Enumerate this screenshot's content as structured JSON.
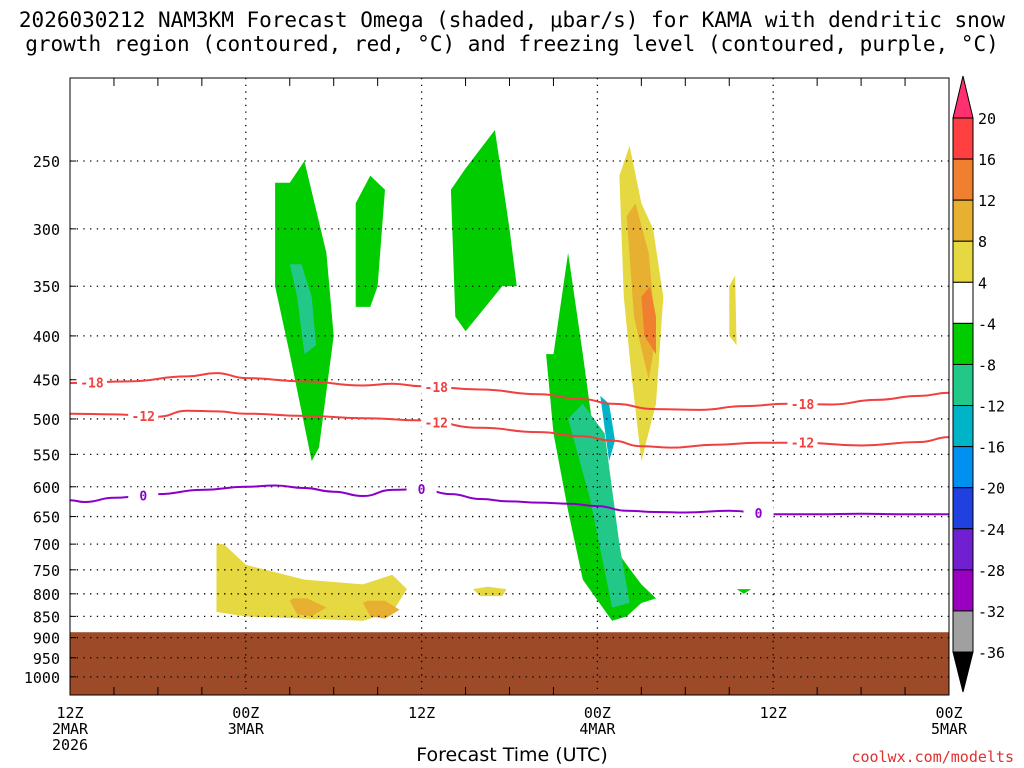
{
  "chart_data": {
    "type": "contour",
    "title_line1": "2026030212 NAM3KM Forecast Omega (shaded, μbar/s) for KAMA with dendritic snow",
    "title_line2": "growth region (contoured, red, °C) and freezing level (contoured, purple, °C)",
    "xlabel": "Forecast Time (UTC)",
    "x_unit": "hours since 2026-03-02 12Z",
    "xlim": [
      0,
      60
    ],
    "ylim_hpa": [
      200,
      1050
    ],
    "y_ticks": [
      250,
      300,
      350,
      400,
      450,
      500,
      550,
      600,
      650,
      700,
      750,
      800,
      850,
      900,
      950,
      1000
    ],
    "x_ticks": [
      {
        "h": 0,
        "lines": [
          "12Z",
          "2MAR",
          "2026"
        ]
      },
      {
        "h": 12,
        "lines": [
          "00Z",
          "3MAR"
        ]
      },
      {
        "h": 24,
        "lines": [
          "12Z"
        ]
      },
      {
        "h": 36,
        "lines": [
          "00Z",
          "4MAR"
        ]
      },
      {
        "h": 48,
        "lines": [
          "12Z"
        ]
      },
      {
        "h": 60,
        "lines": [
          "00Z",
          "5MAR"
        ]
      }
    ],
    "colorbar": {
      "levels": [
        20,
        16,
        12,
        8,
        4,
        -4,
        -8,
        -12,
        -16,
        -20,
        -24,
        -28,
        -32,
        -36
      ],
      "colors": [
        "#ff3070",
        "#ff4040",
        "#f08030",
        "#e8b030",
        "#e6d840",
        "#ffffff",
        "#00cc00",
        "#22c888",
        "#00b4c8",
        "#0090f0",
        "#2040e0",
        "#7020d0",
        "#9a00c0",
        "#a0a0a0",
        "#000000"
      ]
    },
    "series": [
      {
        "name": "-18 °C isotherm",
        "color": "#f04040",
        "label": "-18",
        "x": [
          0,
          4,
          8,
          10,
          12,
          16,
          20,
          22,
          24,
          28,
          32,
          35,
          37,
          40,
          43,
          46,
          49,
          52,
          55,
          58,
          60
        ],
        "y": [
          454,
          452,
          446,
          442,
          448,
          452,
          457,
          455,
          458,
          462,
          468,
          474,
          480,
          487,
          488,
          483,
          480,
          481,
          475,
          470,
          466
        ]
      },
      {
        "name": "-12 °C isotherm",
        "color": "#f04040",
        "label": "-12",
        "x": [
          0,
          3,
          6,
          8,
          10,
          12,
          16,
          20,
          24,
          28,
          32,
          35,
          37,
          39,
          41,
          44,
          47,
          50,
          54,
          58,
          60
        ],
        "y": [
          493,
          494,
          497,
          489,
          490,
          493,
          496,
          499,
          502,
          512,
          518,
          524,
          530,
          538,
          540,
          536,
          533,
          533,
          537,
          532,
          525
        ]
      },
      {
        "name": "0 °C freezing level",
        "color": "#8a00c8",
        "label": "0",
        "x": [
          0,
          1,
          3,
          6,
          9,
          12,
          14,
          16,
          18,
          20,
          22,
          24,
          26,
          28,
          30,
          32,
          34,
          36,
          38,
          40,
          42,
          45,
          48,
          51,
          54,
          57,
          60
        ],
        "y": [
          622,
          625,
          618,
          612,
          605,
          600,
          598,
          602,
          608,
          615,
          605,
          604,
          612,
          620,
          624,
          626,
          628,
          632,
          640,
          642,
          643,
          640,
          646,
          646,
          645,
          646,
          646
        ]
      }
    ],
    "terrain": {
      "surface_hpa": 887,
      "color": "#9c4a28"
    },
    "omega_regions": [
      {
        "value": -6,
        "x": [
          14,
          14,
          15,
          16.5,
          17,
          18,
          17.5,
          16,
          15
        ],
        "y": [
          265,
          350,
          420,
          560,
          540,
          400,
          320,
          250,
          265
        ]
      },
      {
        "value": -10,
        "x": [
          15,
          15.5,
          16,
          16.8,
          16.5,
          15.8
        ],
        "y": [
          330,
          360,
          420,
          410,
          360,
          330
        ]
      },
      {
        "value": -6,
        "x": [
          19.5,
          19.5,
          20.5,
          21,
          21.5,
          20.5
        ],
        "y": [
          280,
          370,
          370,
          350,
          270,
          260
        ]
      },
      {
        "value": -6,
        "x": [
          26,
          26.3,
          27,
          29.5,
          30.5,
          30,
          29,
          27
        ],
        "y": [
          270,
          380,
          395,
          350,
          350,
          300,
          230,
          255
        ]
      },
      {
        "value": -6,
        "x": [
          32.5,
          33,
          34,
          35,
          37,
          38,
          39,
          40,
          39,
          38,
          37,
          36,
          35,
          34,
          33
        ],
        "y": [
          420,
          520,
          640,
          770,
          860,
          850,
          820,
          810,
          780,
          740,
          700,
          560,
          420,
          320,
          420
        ]
      },
      {
        "value": -10,
        "x": [
          34,
          35.5,
          37,
          38.2,
          37.5,
          36.5,
          35
        ],
        "y": [
          500,
          620,
          830,
          820,
          700,
          520,
          480
        ]
      },
      {
        "value": -16,
        "x": [
          36.2,
          36.8,
          37.2,
          36.8
        ],
        "y": [
          470,
          560,
          530,
          480
        ]
      },
      {
        "value": 6,
        "x": [
          37.5,
          37.8,
          38.3,
          39,
          40,
          40.5,
          39.8,
          39,
          38.2
        ],
        "y": [
          260,
          360,
          440,
          560,
          480,
          360,
          300,
          280,
          240
        ]
      },
      {
        "value": 10,
        "x": [
          38,
          38.5,
          39.5,
          40,
          39.5,
          38.6
        ],
        "y": [
          290,
          380,
          450,
          400,
          320,
          280
        ]
      },
      {
        "value": 14,
        "x": [
          39,
          39.2,
          40,
          40,
          39.6
        ],
        "y": [
          360,
          400,
          420,
          380,
          350
        ]
      },
      {
        "value": 6,
        "x": [
          10,
          10,
          12,
          16,
          20,
          22,
          23,
          22,
          20,
          16,
          12,
          10.5
        ],
        "y": [
          700,
          840,
          850,
          855,
          860,
          840,
          790,
          760,
          780,
          770,
          740,
          700
        ]
      },
      {
        "value": 10,
        "x": [
          15,
          15.5,
          16.5,
          17.5,
          16.2,
          15.2
        ],
        "y": [
          815,
          845,
          850,
          830,
          810,
          810
        ]
      },
      {
        "value": 10,
        "x": [
          20,
          20.5,
          21.5,
          22.5,
          21.5,
          20.3
        ],
        "y": [
          820,
          850,
          855,
          835,
          815,
          815
        ]
      },
      {
        "value": 6,
        "x": [
          27.5,
          28,
          29.5,
          29.8,
          28.5
        ],
        "y": [
          790,
          805,
          805,
          790,
          785
        ]
      },
      {
        "value": -6,
        "x": [
          45.5,
          46,
          46.5
        ],
        "y": [
          790,
          800,
          790
        ]
      },
      {
        "value": 6,
        "x": [
          45,
          45,
          45.5,
          45.4
        ],
        "y": [
          350,
          400,
          410,
          340
        ]
      }
    ]
  },
  "credit": "coolwx.com/modelts"
}
